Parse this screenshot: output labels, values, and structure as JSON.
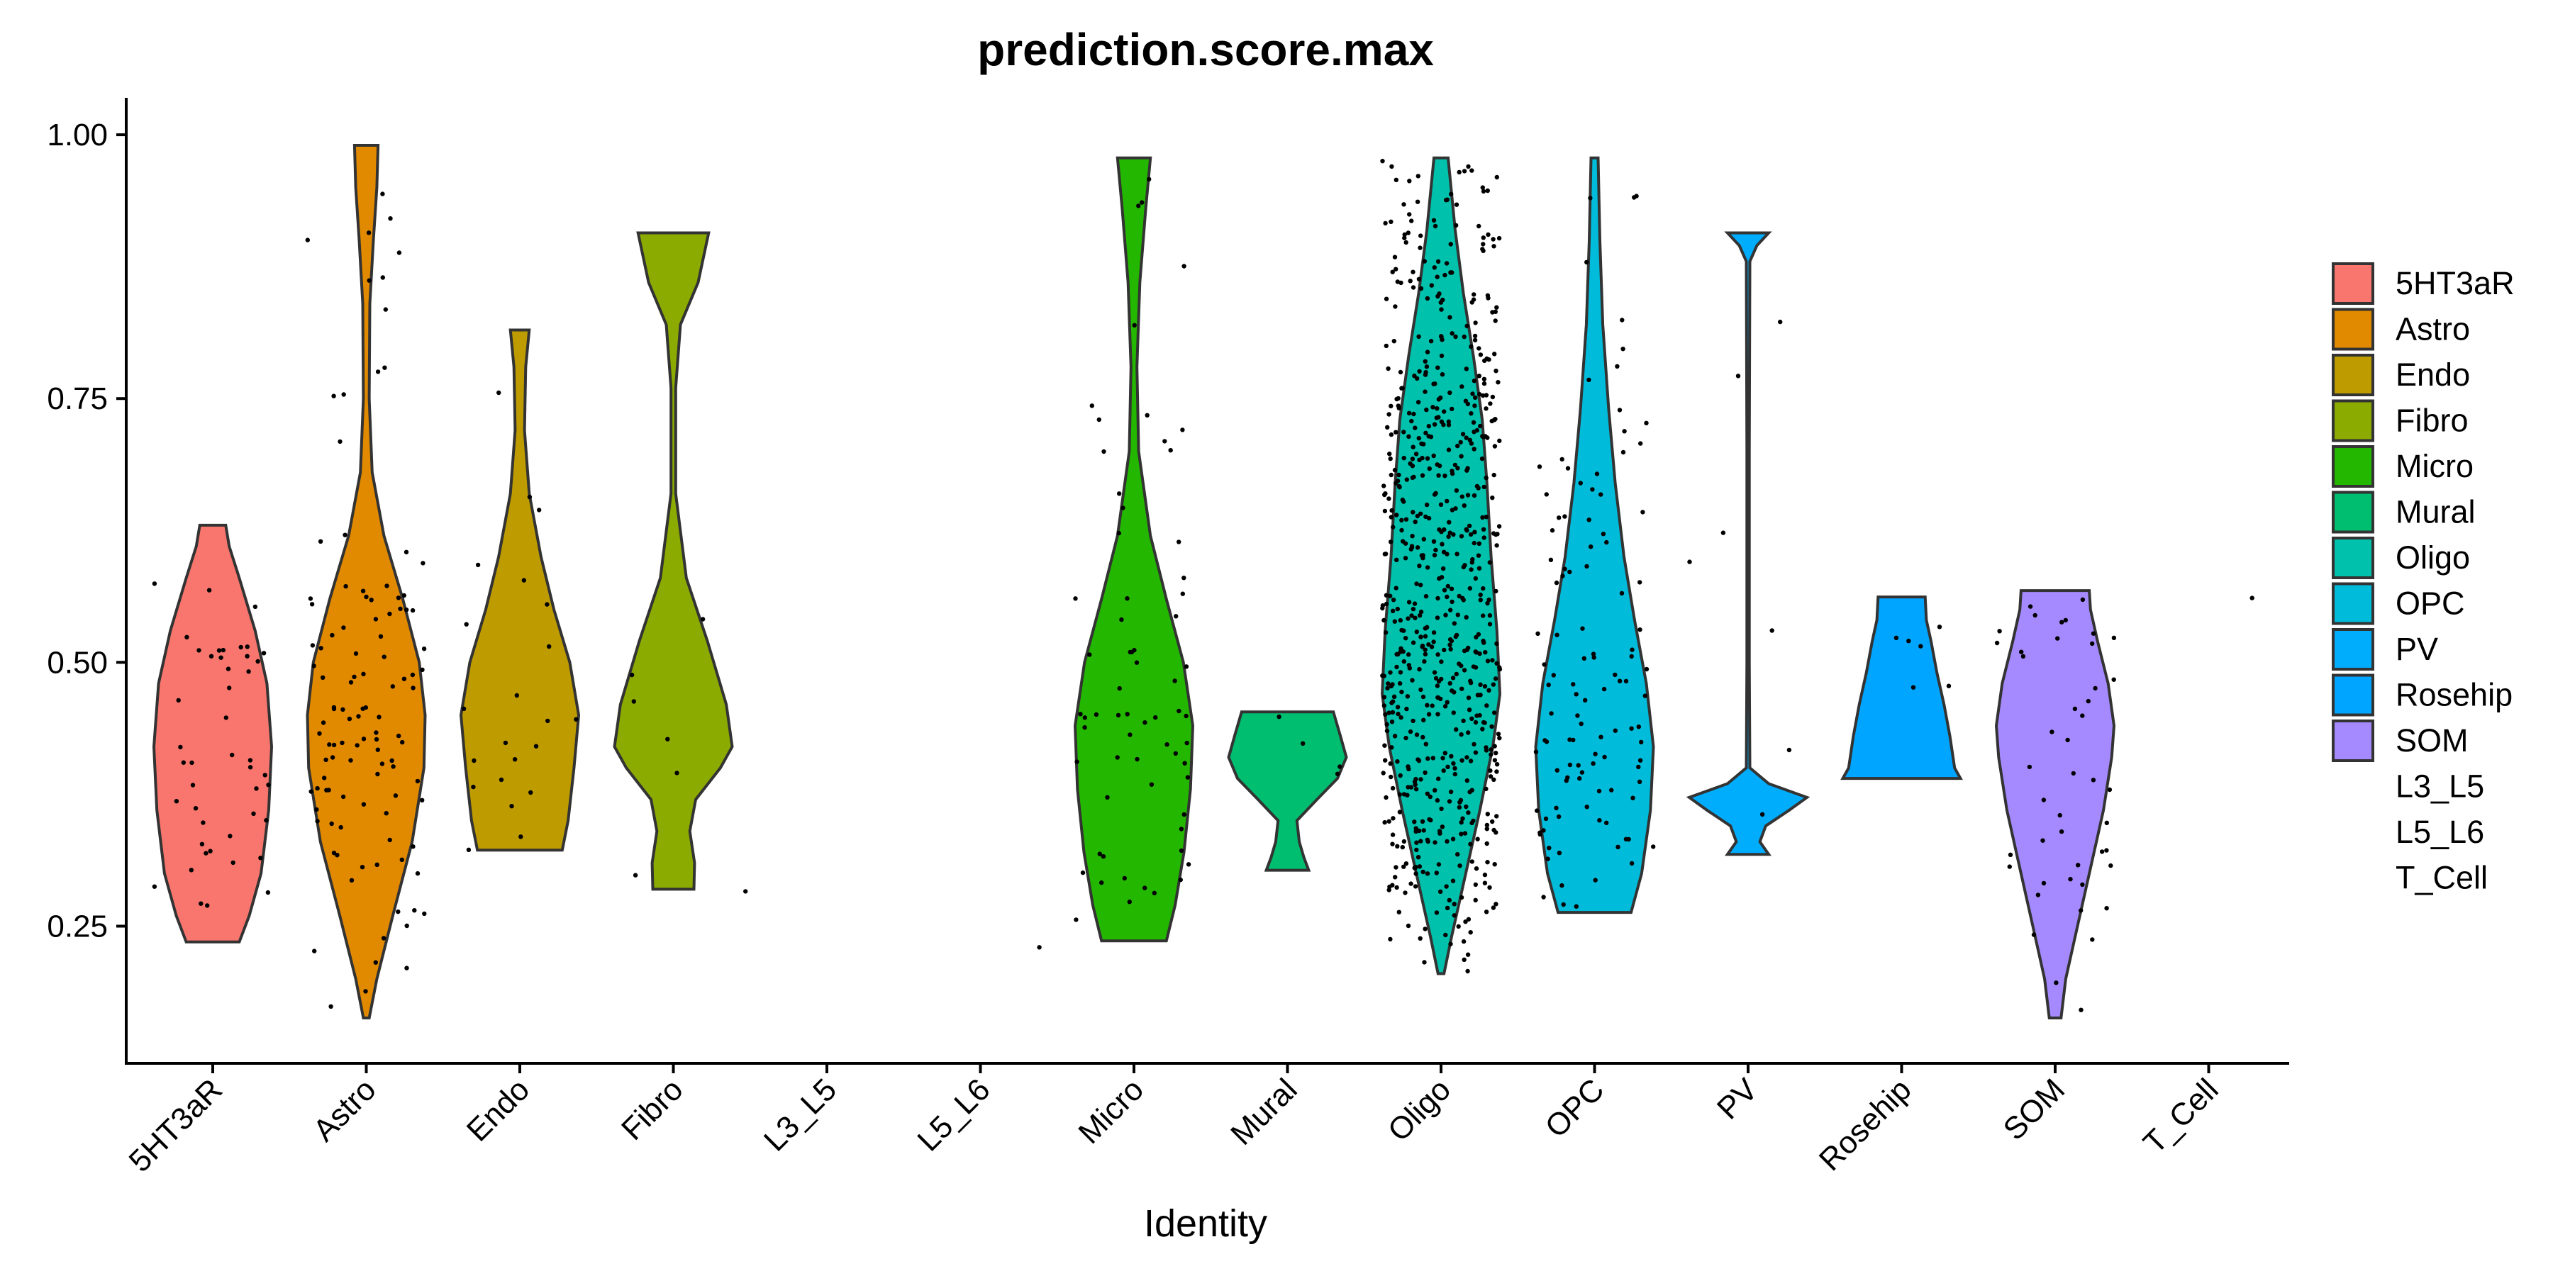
{
  "chart_data": {
    "type": "violin",
    "title": "prediction.score.max",
    "xlabel": "Identity",
    "ylabel": "",
    "ylim": [
      0.12,
      1.035
    ],
    "y_ticks": [
      0.25,
      0.5,
      0.75,
      1.0
    ],
    "y_tick_labels": [
      "0.25",
      "0.50",
      "0.75",
      "1.00"
    ],
    "categories": [
      "5HT3aR",
      "Astro",
      "Endo",
      "Fibro",
      "L3_L5",
      "L5_L6",
      "Micro",
      "Mural",
      "Oligo",
      "OPC",
      "PV",
      "Rosehip",
      "SOM",
      "T_Cell"
    ],
    "legend": {
      "placement": "right",
      "entries": [
        "5HT3aR",
        "Astro",
        "Endo",
        "Fibro",
        "Micro",
        "Mural",
        "Oligo",
        "OPC",
        "PV",
        "Rosehip",
        "SOM",
        "L3_L5",
        "L5_L6",
        "T_Cell"
      ]
    },
    "series": [
      {
        "name": "5HT3aR",
        "color": "#F8766D",
        "ymin": 0.235,
        "ymax": 0.63,
        "profile": [
          [
            0.235,
            0.45
          ],
          [
            0.26,
            0.62
          ],
          [
            0.3,
            0.82
          ],
          [
            0.36,
            0.95
          ],
          [
            0.42,
            1.0
          ],
          [
            0.48,
            0.92
          ],
          [
            0.53,
            0.72
          ],
          [
            0.58,
            0.45
          ],
          [
            0.61,
            0.28
          ],
          [
            0.63,
            0.22
          ]
        ],
        "n_points": 45
      },
      {
        "name": "Astro",
        "color": "#E18A00",
        "ymin": 0.163,
        "ymax": 0.99,
        "profile": [
          [
            0.163,
            0.05
          ],
          [
            0.2,
            0.18
          ],
          [
            0.26,
            0.45
          ],
          [
            0.33,
            0.78
          ],
          [
            0.4,
            0.98
          ],
          [
            0.45,
            1.0
          ],
          [
            0.5,
            0.9
          ],
          [
            0.56,
            0.62
          ],
          [
            0.62,
            0.3
          ],
          [
            0.68,
            0.1
          ],
          [
            0.75,
            0.05
          ],
          [
            0.84,
            0.06
          ],
          [
            0.9,
            0.12
          ],
          [
            0.95,
            0.18
          ],
          [
            0.99,
            0.2
          ]
        ],
        "n_points": 110
      },
      {
        "name": "Endo",
        "color": "#BE9C00",
        "ymin": 0.322,
        "ymax": 0.815,
        "profile": [
          [
            0.322,
            0.72
          ],
          [
            0.35,
            0.82
          ],
          [
            0.4,
            0.92
          ],
          [
            0.45,
            1.0
          ],
          [
            0.5,
            0.85
          ],
          [
            0.55,
            0.58
          ],
          [
            0.6,
            0.36
          ],
          [
            0.66,
            0.16
          ],
          [
            0.72,
            0.08
          ],
          [
            0.78,
            0.1
          ],
          [
            0.815,
            0.16
          ]
        ],
        "n_points": 22
      },
      {
        "name": "Fibro",
        "color": "#8CAB00",
        "ymin": 0.285,
        "ymax": 0.907,
        "profile": [
          [
            0.285,
            0.35
          ],
          [
            0.31,
            0.36
          ],
          [
            0.34,
            0.28
          ],
          [
            0.37,
            0.38
          ],
          [
            0.4,
            0.8
          ],
          [
            0.42,
            1.0
          ],
          [
            0.46,
            0.9
          ],
          [
            0.52,
            0.58
          ],
          [
            0.58,
            0.22
          ],
          [
            0.66,
            0.04
          ],
          [
            0.76,
            0.04
          ],
          [
            0.82,
            0.12
          ],
          [
            0.86,
            0.42
          ],
          [
            0.907,
            0.6
          ]
        ],
        "n_points": 6
      },
      {
        "name": "Micro",
        "color": "#24B700",
        "ymin": 0.236,
        "ymax": 0.978,
        "profile": [
          [
            0.236,
            0.55
          ],
          [
            0.27,
            0.7
          ],
          [
            0.32,
            0.85
          ],
          [
            0.38,
            0.96
          ],
          [
            0.44,
            1.0
          ],
          [
            0.5,
            0.84
          ],
          [
            0.56,
            0.55
          ],
          [
            0.62,
            0.28
          ],
          [
            0.7,
            0.08
          ],
          [
            0.78,
            0.05
          ],
          [
            0.86,
            0.1
          ],
          [
            0.93,
            0.2
          ],
          [
            0.978,
            0.28
          ]
        ],
        "n_points": 65
      },
      {
        "name": "Mural",
        "color": "#00BE70",
        "ymin": 0.303,
        "ymax": 0.453,
        "profile": [
          [
            0.303,
            0.36
          ],
          [
            0.315,
            0.28
          ],
          [
            0.33,
            0.2
          ],
          [
            0.35,
            0.16
          ],
          [
            0.37,
            0.5
          ],
          [
            0.39,
            0.85
          ],
          [
            0.41,
            1.0
          ],
          [
            0.43,
            0.9
          ],
          [
            0.453,
            0.78
          ]
        ],
        "n_points": 4
      },
      {
        "name": "Oligo",
        "color": "#00C1AB",
        "ymin": 0.205,
        "ymax": 0.978,
        "profile": [
          [
            0.205,
            0.05
          ],
          [
            0.24,
            0.18
          ],
          [
            0.3,
            0.42
          ],
          [
            0.36,
            0.66
          ],
          [
            0.42,
            0.88
          ],
          [
            0.47,
            1.0
          ],
          [
            0.53,
            0.95
          ],
          [
            0.6,
            0.85
          ],
          [
            0.67,
            0.78
          ],
          [
            0.73,
            0.7
          ],
          [
            0.79,
            0.55
          ],
          [
            0.85,
            0.38
          ],
          [
            0.91,
            0.24
          ],
          [
            0.978,
            0.12
          ]
        ],
        "n_points": 700
      },
      {
        "name": "OPC",
        "color": "#00BBDA",
        "ymin": 0.263,
        "ymax": 0.978,
        "profile": [
          [
            0.263,
            0.62
          ],
          [
            0.3,
            0.8
          ],
          [
            0.36,
            0.95
          ],
          [
            0.42,
            1.0
          ],
          [
            0.48,
            0.88
          ],
          [
            0.54,
            0.68
          ],
          [
            0.6,
            0.5
          ],
          [
            0.67,
            0.35
          ],
          [
            0.74,
            0.24
          ],
          [
            0.82,
            0.14
          ],
          [
            0.9,
            0.09
          ],
          [
            0.978,
            0.06
          ]
        ],
        "n_points": 110
      },
      {
        "name": "PV",
        "color": "#00ACFC",
        "ymin": 0.318,
        "ymax": 0.907,
        "profile": [
          [
            0.318,
            0.35
          ],
          [
            0.33,
            0.2
          ],
          [
            0.345,
            0.3
          ],
          [
            0.36,
            0.7
          ],
          [
            0.372,
            1.0
          ],
          [
            0.385,
            0.35
          ],
          [
            0.4,
            0.03
          ],
          [
            0.5,
            0.02
          ],
          [
            0.7,
            0.02
          ],
          [
            0.88,
            0.03
          ],
          [
            0.895,
            0.15
          ],
          [
            0.907,
            0.35
          ]
        ],
        "n_points": 7
      },
      {
        "name": "Rosehip",
        "color": "#00A5FF",
        "ymin": 0.39,
        "ymax": 0.562,
        "profile": [
          [
            0.39,
            1.0
          ],
          [
            0.4,
            0.9
          ],
          [
            0.43,
            0.82
          ],
          [
            0.46,
            0.72
          ],
          [
            0.49,
            0.6
          ],
          [
            0.52,
            0.5
          ],
          [
            0.54,
            0.42
          ],
          [
            0.562,
            0.4
          ]
        ],
        "n_points": 6
      },
      {
        "name": "SOM",
        "color": "#A58AFF",
        "ymin": 0.163,
        "ymax": 0.568,
        "profile": [
          [
            0.163,
            0.1
          ],
          [
            0.2,
            0.18
          ],
          [
            0.25,
            0.38
          ],
          [
            0.31,
            0.62
          ],
          [
            0.36,
            0.82
          ],
          [
            0.41,
            0.96
          ],
          [
            0.44,
            1.0
          ],
          [
            0.48,
            0.9
          ],
          [
            0.52,
            0.72
          ],
          [
            0.55,
            0.6
          ],
          [
            0.568,
            0.58
          ]
        ],
        "n_points": 45
      },
      {
        "name": "L3_L5",
        "color": "",
        "ymin": null,
        "ymax": null,
        "profile": [],
        "n_points": 1
      },
      {
        "name": "L5_L6",
        "color": "",
        "ymin": null,
        "ymax": null,
        "profile": [],
        "n_points": 1
      },
      {
        "name": "T_Cell",
        "color": "",
        "ymin": null,
        "ymax": null,
        "profile": [],
        "n_points": 1
      }
    ],
    "singleton_points": [
      {
        "category": "Fibro",
        "value": 0.283
      },
      {
        "category": "L5_L6",
        "value": 0.23
      },
      {
        "category": "T_Cell",
        "value": 0.561
      }
    ],
    "grid": false
  }
}
